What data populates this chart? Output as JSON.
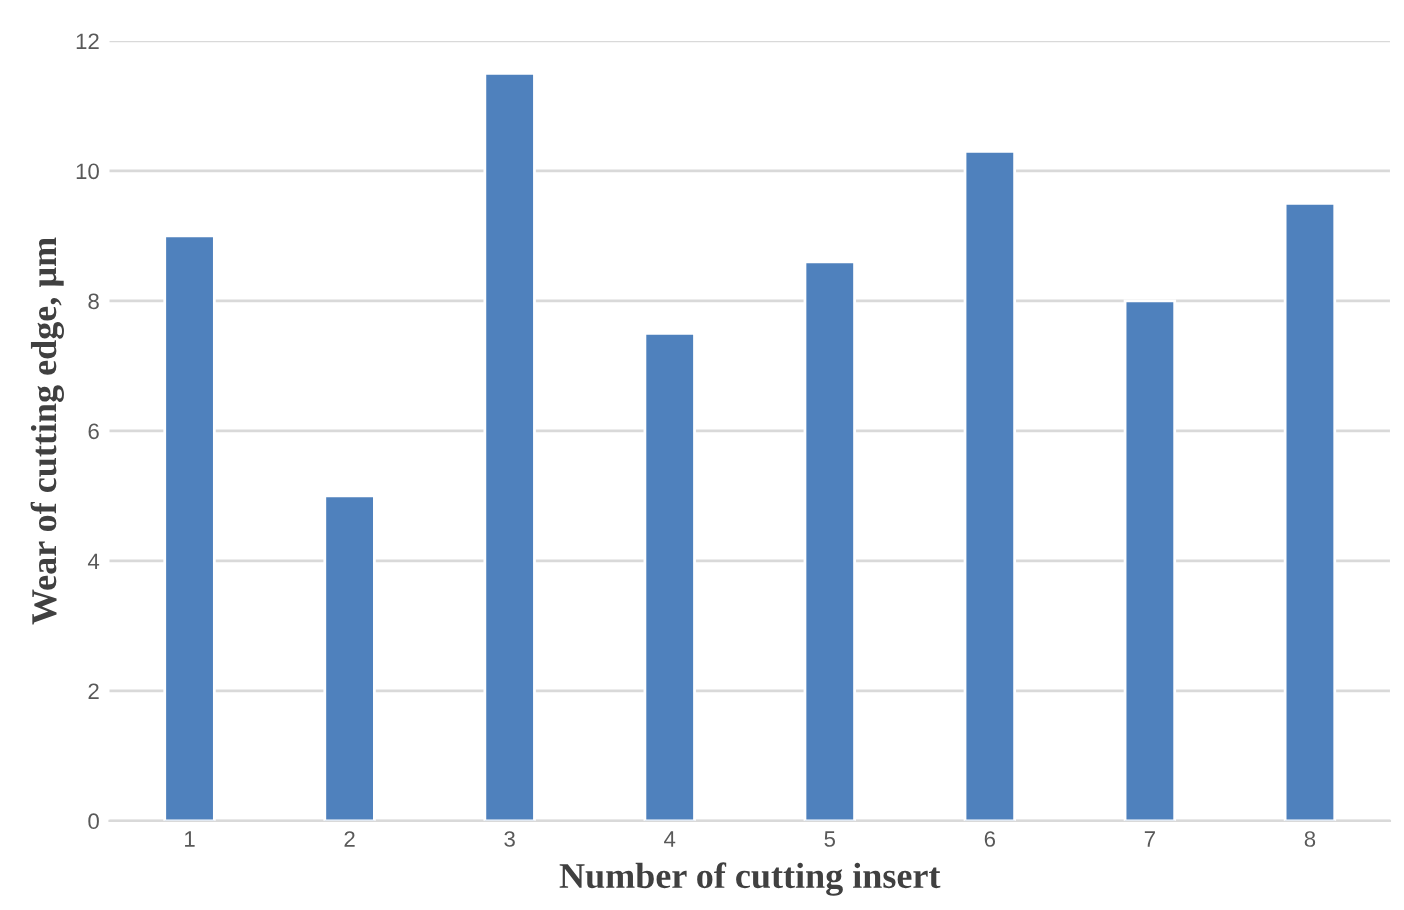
{
  "chart_data": {
    "type": "bar",
    "xlabel": "Number of cutting insert",
    "ylabel": "Wear of cutting edge, µm",
    "categories": [
      "1",
      "2",
      "3",
      "4",
      "5",
      "6",
      "7",
      "8"
    ],
    "values": [
      9,
      5,
      11.5,
      7.5,
      8.6,
      10.3,
      8,
      9.5
    ],
    "color": "#4f81bd",
    "ylim": [
      0,
      12
    ],
    "yticks": [
      0,
      2,
      4,
      6,
      8,
      10,
      12
    ],
    "grid": "y"
  }
}
